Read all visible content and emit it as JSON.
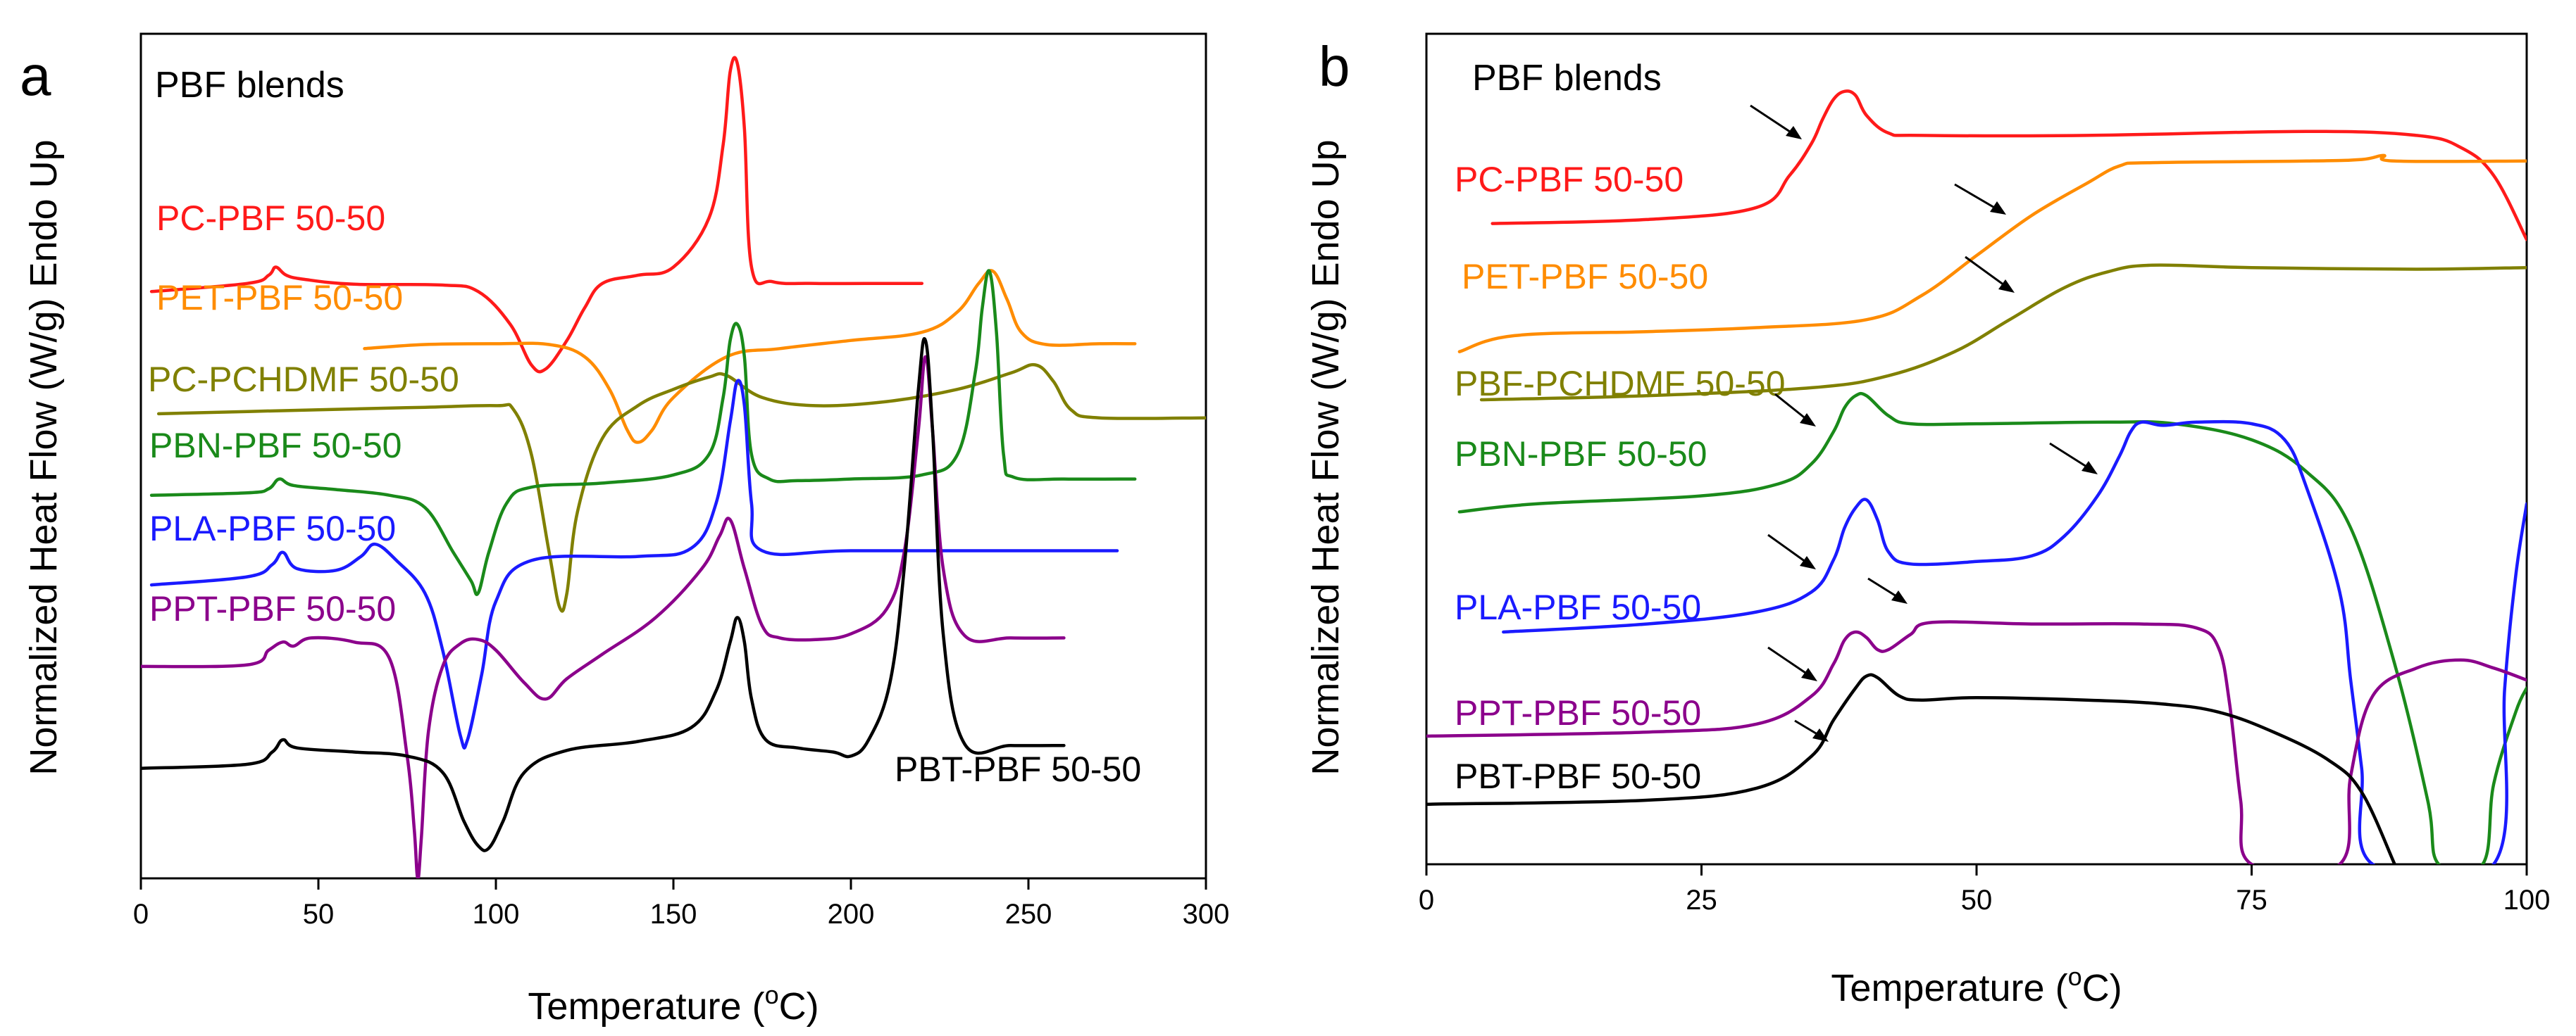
{
  "chart_data": [
    {
      "type": "line",
      "panel": "a",
      "title": "PBF blends",
      "xlabel": "Temperature (°C)",
      "ylabel": "Normalized Heat Flow (W/g) Endo Up",
      "xlim": [
        0,
        300
      ],
      "ylim": [
        0,
        100
      ],
      "xticks": [
        "0",
        "50",
        "100",
        "150",
        "200",
        "250",
        "300"
      ],
      "x_tick_values": [
        0,
        50,
        100,
        150,
        200,
        250,
        300
      ],
      "yticks": [],
      "series": [
        {
          "name": "PC-PBF 50-50",
          "color": "#ff1a1a",
          "x": [
            3,
            30,
            36,
            38,
            41,
            46,
            60,
            85,
            95,
            104,
            110,
            114,
            120,
            125,
            130,
            140,
            150,
            160,
            164,
            166,
            168,
            170,
            172,
            178,
            190,
            210,
            220
          ],
          "y": [
            72,
            73,
            74,
            75,
            74,
            73.5,
            72.9,
            72.8,
            72,
            68,
            63,
            62.5,
            66,
            70,
            73,
            74,
            75,
            81,
            90,
            99,
            100,
            92,
            75,
            73.2,
            73,
            73,
            73
          ]
        },
        {
          "name": "PET-PBF 50-50",
          "color": "#ff8c00",
          "x": [
            63,
            80,
            100,
            115,
            125,
            132,
            137,
            140,
            144,
            150,
            165,
            180,
            200,
            220,
            230,
            236,
            240,
            244,
            248,
            255,
            270,
            280
          ],
          "y": [
            65,
            65.5,
            65.6,
            65.5,
            64,
            60,
            55,
            53.5,
            55,
            59,
            64,
            65,
            66,
            67,
            69.5,
            73,
            74.5,
            71,
            67,
            65.5,
            65.6,
            65.6
          ]
        },
        {
          "name": "PC-PCHDMF 50-50",
          "color": "#808000",
          "x": [
            5,
            50,
            80,
            100,
            105,
            110,
            115,
            118,
            120,
            123,
            130,
            140,
            150,
            160,
            165,
            175,
            190,
            210,
            230,
            245,
            252,
            257,
            262,
            270,
            300
          ],
          "y": [
            57,
            57.5,
            57.8,
            58,
            57.5,
            52,
            40,
            33.2,
            35,
            45,
            54,
            58,
            60,
            61.5,
            61.7,
            59,
            58,
            58.5,
            60,
            62,
            63,
            61,
            57.5,
            56.5,
            56.5
          ]
        },
        {
          "name": "PBN-PBF 50-50",
          "color": "#1a8a1a",
          "x": [
            3,
            30,
            36,
            39,
            43,
            55,
            70,
            80,
            88,
            93,
            95,
            98,
            103,
            110,
            130,
            150,
            160,
            164,
            166,
            168,
            170,
            172,
            177,
            185,
            200,
            220,
            230,
            235,
            237,
            239,
            241,
            243,
            246,
            260,
            280
          ],
          "y": [
            47,
            47.3,
            47.8,
            49,
            48.2,
            47.7,
            47,
            45.5,
            40,
            36.5,
            35,
            40,
            46,
            48,
            48.5,
            49.5,
            52,
            59,
            66,
            68,
            64,
            52,
            49,
            48.8,
            49,
            49.5,
            52,
            62,
            70,
            74.5,
            67,
            52,
            49.2,
            49,
            49
          ]
        },
        {
          "name": "PLA-PBF 50-50",
          "color": "#1a1aff",
          "x": [
            3,
            30,
            37,
            40,
            44,
            55,
            62,
            66,
            72,
            80,
            85,
            90,
            92,
            96,
            100,
            110,
            140,
            155,
            162,
            166,
            168,
            170,
            172,
            175,
            200,
            250,
            275
          ],
          "y": [
            36,
            37,
            38.5,
            40,
            38,
            37.8,
            39.5,
            41,
            39,
            35,
            28,
            17.5,
            17,
            25,
            34,
            39,
            39.5,
            40.5,
            46,
            56,
            61,
            58,
            46,
            40.2,
            40.2,
            40.2,
            40.2
          ]
        },
        {
          "name": "PPT-PBF 50-50",
          "color": "#8b008b",
          "x": [
            0,
            30,
            36,
            40,
            43,
            48,
            60,
            70,
            75,
            77,
            78,
            79,
            81,
            85,
            90,
            95,
            100,
            108,
            114,
            120,
            130,
            145,
            158,
            163,
            166,
            170,
            175,
            180,
            190,
            200,
            210,
            215,
            219,
            221,
            223,
            226,
            232,
            245,
            260
          ],
          "y": [
            26,
            26.2,
            28,
            29,
            28.5,
            29.5,
            29,
            27,
            15,
            6,
            0,
            5,
            18,
            26,
            28.8,
            29.3,
            28,
            24,
            22,
            24.5,
            27.5,
            32,
            38,
            42,
            44,
            38,
            31,
            29.5,
            29.3,
            30,
            33,
            40,
            55,
            64,
            55,
            38,
            29.8,
            29.5,
            29.5
          ]
        },
        {
          "name": "PBT-PBF 50-50",
          "color": "#000000",
          "x": [
            0,
            30,
            37,
            40,
            44,
            60,
            75,
            85,
            91,
            95,
            98,
            102,
            108,
            120,
            140,
            155,
            162,
            166,
            168,
            170,
            172,
            176,
            185,
            195,
            200,
            205,
            211,
            215,
            219,
            221,
            223,
            226,
            232,
            245,
            260
          ],
          "y": [
            13.5,
            14,
            15.5,
            17,
            16,
            15.5,
            15,
            13,
            7,
            4,
            3.7,
            7,
            13,
            15.7,
            16.8,
            18.5,
            23,
            29,
            32,
            29,
            22,
            17,
            16,
            15.5,
            15,
            17,
            24,
            38,
            60,
            66,
            55,
            30,
            16.5,
            16.3,
            16.3
          ]
        }
      ]
    },
    {
      "type": "line",
      "panel": "b",
      "title": "PBF blends",
      "xlabel": "Temperature (°C)",
      "ylabel": "Normalized Heat Flow (W/g) Endo Up",
      "xlim": [
        0,
        100
      ],
      "ylim": [
        0,
        100
      ],
      "xticks": [
        "0",
        "25",
        "50",
        "75",
        "100"
      ],
      "x_tick_values": [
        0,
        25,
        50,
        75,
        100
      ],
      "yticks": [],
      "series": [
        {
          "name": "PC-PBF 50-50",
          "color": "#ff1a1a",
          "x": [
            6,
            20,
            30,
            33,
            35,
            36,
            37,
            38,
            39,
            40,
            42,
            45,
            60,
            80,
            90,
            94,
            97,
            100
          ],
          "y": [
            80,
            80.5,
            82,
            86,
            90,
            93,
            95.5,
            96.5,
            96,
            93.5,
            91.3,
            91,
            91,
            91.5,
            91,
            89.5,
            86,
            78
          ]
        },
        {
          "name": "PET-PBF 50-50",
          "color": "#ff8c00",
          "x": [
            3,
            8,
            20,
            30,
            40,
            45,
            50,
            55,
            60,
            63,
            66,
            80,
            85,
            87,
            88,
            100
          ],
          "y": [
            64,
            66,
            66.5,
            67,
            68,
            71,
            76,
            81,
            85,
            87.2,
            87.6,
            87.8,
            88,
            88.5,
            87.8,
            87.8
          ]
        },
        {
          "name": "PBF-PCHDMF 50-50",
          "color": "#808000",
          "x": [
            5,
            20,
            35,
            42,
            48,
            53,
            58,
            62,
            66,
            75,
            90,
            100
          ],
          "y": [
            58,
            58.5,
            59.5,
            61,
            64,
            68,
            72,
            74,
            74.8,
            74.5,
            74.3,
            74.5
          ]
        },
        {
          "name": "PBN-PBF 50-50",
          "color": "#1a8a1a",
          "x": [
            3,
            10,
            25,
            32,
            35,
            37,
            38,
            39,
            40,
            42,
            44,
            50,
            62,
            68,
            75,
            80,
            84,
            88,
            91,
            92,
            96,
            97,
            99,
            100
          ],
          "y": [
            44,
            45,
            46,
            47.5,
            50,
            54,
            57,
            58.5,
            58.5,
            56,
            55,
            55,
            55.2,
            55,
            53,
            49,
            42,
            25,
            8,
            0,
            0,
            10,
            19,
            22
          ]
        },
        {
          "name": "PLA-PBF 50-50",
          "color": "#1a1aff",
          "x": [
            7,
            20,
            30,
            35,
            37,
            38,
            39,
            40,
            41,
            42,
            44,
            50,
            55,
            58,
            61,
            63,
            64,
            65,
            67,
            70,
            75,
            78,
            80,
            83,
            84,
            85,
            86,
            97,
            98,
            99,
            100
          ],
          "y": [
            29,
            30,
            31.5,
            34,
            38,
            42,
            44.5,
            45.5,
            43,
            39,
            37.5,
            37.8,
            38.5,
            41,
            46,
            51,
            54,
            55.2,
            54.8,
            55.2,
            55,
            53,
            47,
            34,
            23,
            12,
            0,
            0,
            22,
            36,
            45
          ]
        },
        {
          "name": "PPT-PBF 50-50",
          "color": "#8b008b",
          "x": [
            0,
            20,
            30,
            35,
            37,
            38,
            39,
            40,
            41,
            42,
            44,
            46,
            55,
            65,
            70,
            72,
            73,
            74,
            75,
            83,
            84,
            86,
            90,
            94,
            97,
            100
          ],
          "y": [
            16,
            16.5,
            17.5,
            21,
            25,
            28,
            29,
            28.3,
            26.8,
            26.8,
            28.7,
            30.2,
            30,
            30,
            29.5,
            27,
            20,
            8,
            0,
            0,
            11,
            21,
            24.5,
            25.5,
            24.5,
            23
          ]
        },
        {
          "name": "PBT-PBF 50-50",
          "color": "#000000",
          "x": [
            0,
            20,
            30,
            35,
            37,
            39,
            40,
            41,
            43,
            45,
            50,
            60,
            67,
            72,
            77,
            82,
            85,
            88
          ],
          "y": [
            7.5,
            8,
            9.5,
            13.5,
            18,
            22,
            23.5,
            23.3,
            21,
            20.5,
            20.8,
            20.5,
            20,
            19,
            16.5,
            13,
            9,
            0
          ]
        }
      ]
    }
  ],
  "panel_a": {
    "letter": "a",
    "inset_title": "PBF blends",
    "labels": [
      "PC-PBF 50-50",
      "PET-PBF 50-50",
      "PC-PCHDMF 50-50",
      "PBN-PBF 50-50",
      "PLA-PBF 50-50",
      "PPT-PBF 50-50",
      "PBT-PBF 50-50"
    ]
  },
  "panel_b": {
    "letter": "b",
    "inset_title": "PBF blends",
    "labels": [
      "PC-PBF 50-50",
      "PET-PBF 50-50",
      "PBF-PCHDMF 50-50",
      "PBN-PBF 50-50",
      "PLA-PBF 50-50",
      "PPT-PBF 50-50",
      "PBT-PBF 50-50"
    ]
  },
  "axis_text": {
    "ylabel_a": "Normalized Heat Flow (W/g) Endo Up",
    "ylabel_b": "Normalized Heat Flow (W/g) Endo Up",
    "xlabel_prefix": "Temperature (",
    "xlabel_degree": "o",
    "xlabel_suffix": "C)"
  }
}
